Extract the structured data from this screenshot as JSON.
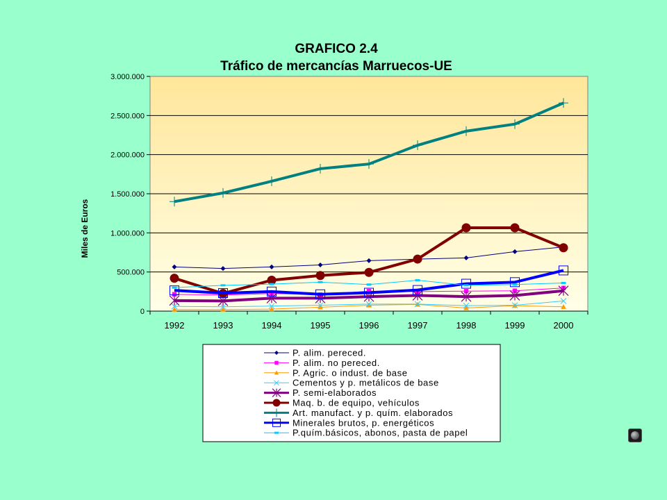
{
  "chart_data": {
    "type": "line",
    "title": "GRAFICO 2.4",
    "subtitle": "Tráfico de mercancías Marruecos-UE",
    "ylabel": "Miles de Euros",
    "xlabel": "",
    "categories": [
      "1992",
      "1993",
      "1994",
      "1995",
      "1996",
      "1997",
      "1998",
      "1999",
      "2000"
    ],
    "ylim": [
      0,
      3000000
    ],
    "yticks": [
      0,
      500000,
      1000000,
      1500000,
      2000000,
      2500000,
      3000000
    ],
    "ytick_labels": [
      "0",
      "500.000",
      "1.000.000",
      "1.500.000",
      "2.000.000",
      "2.500.000",
      "3.000.000"
    ],
    "grid": true,
    "legend_position": "bottom",
    "series": [
      {
        "name": "P. alim. pereced.",
        "color": "#000080",
        "marker": "diamond",
        "width": 1,
        "values": [
          565000,
          545000,
          565000,
          590000,
          645000,
          665000,
          680000,
          760000,
          820000
        ]
      },
      {
        "name": "P. alim. no pereced.",
        "color": "#FF00FF",
        "marker": "square",
        "width": 1,
        "values": [
          215000,
          205000,
          225000,
          210000,
          255000,
          250000,
          255000,
          260000,
          295000
        ]
      },
      {
        "name": "P. Agric. o indust. de base",
        "color": "#FF9900",
        "marker": "triangle",
        "width": 1,
        "values": [
          20000,
          20000,
          25000,
          50000,
          75000,
          85000,
          40000,
          70000,
          55000
        ]
      },
      {
        "name": "Cementos y p. metálicos de base",
        "color": "#33CCFF",
        "marker": "x",
        "width": 1,
        "values": [
          60000,
          55000,
          65000,
          75000,
          90000,
          90000,
          70000,
          75000,
          130000
        ]
      },
      {
        "name": "P. semi-elaborados",
        "color": "#800080",
        "marker": "star",
        "width": 4,
        "values": [
          135000,
          130000,
          165000,
          165000,
          185000,
          200000,
          185000,
          200000,
          260000
        ]
      },
      {
        "name": "Maq. b. de equipo, vehículos",
        "color": "#800000",
        "marker": "circle",
        "width": 4,
        "values": [
          420000,
          225000,
          395000,
          455000,
          495000,
          665000,
          1065000,
          1065000,
          810000
        ]
      },
      {
        "name": "Art. manufact. y p. quím. elaborados",
        "color": "#008080",
        "marker": "plus",
        "width": 4,
        "values": [
          1400000,
          1510000,
          1660000,
          1820000,
          1880000,
          2120000,
          2300000,
          2390000,
          2660000
        ]
      },
      {
        "name": "Minerales brutos, p. energéticos",
        "color": "#0000FF",
        "marker": "hsquare",
        "width": 4,
        "values": [
          265000,
          230000,
          250000,
          215000,
          235000,
          270000,
          350000,
          370000,
          520000
        ]
      },
      {
        "name": "P.quím.básicos, abonos, pasta de papel",
        "color": "#00CCFF",
        "marker": "dash",
        "width": 1,
        "values": [
          300000,
          330000,
          345000,
          370000,
          340000,
          395000,
          330000,
          340000,
          360000
        ]
      }
    ]
  }
}
